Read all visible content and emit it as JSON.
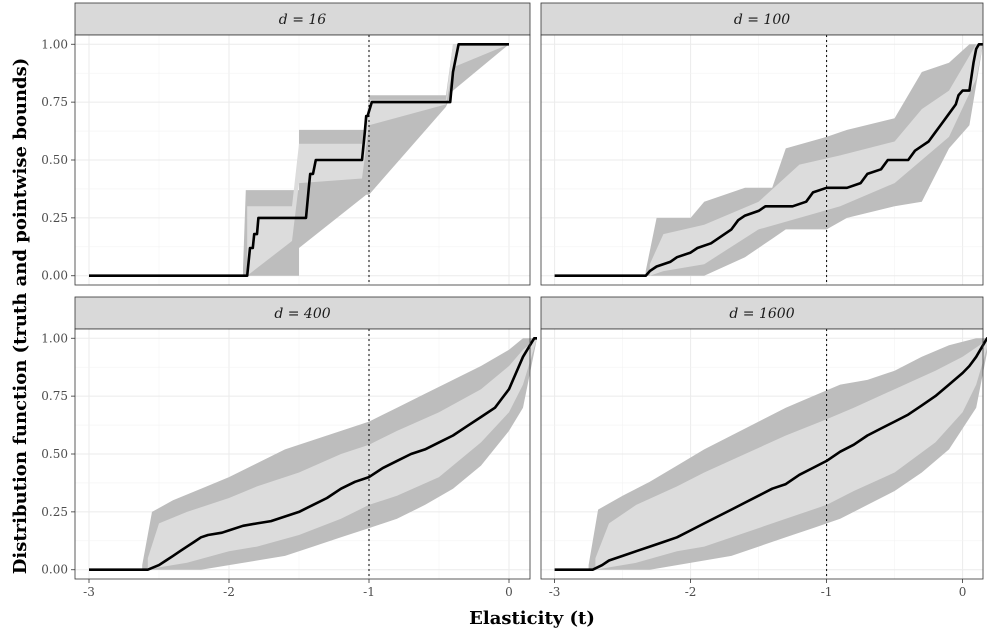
{
  "chart_data": {
    "type": "area",
    "xlabel": "Elasticity (t)",
    "ylabel": "Distribution function (truth and pointwise bounds)",
    "xlim": [
      -3.1,
      0.15
    ],
    "ylim": [
      -0.04,
      1.04
    ],
    "x_ticks": [
      -3,
      -2,
      -1,
      0
    ],
    "x_tick_labels": [
      "-3",
      "-2",
      "-1",
      "0"
    ],
    "y_ticks": [
      0,
      0.25,
      0.5,
      0.75,
      1
    ],
    "y_tick_labels": [
      "0.00",
      "0.25",
      "0.50",
      "0.75",
      "1.00"
    ],
    "reference_line_x": -1,
    "grid": true,
    "colors": {
      "truth": "#000000",
      "outer_band": "#bdbdbd",
      "inner_band": "#dcdcdc",
      "strip_bg": "#d9d9d9",
      "grid": "#ebebeb"
    },
    "panels": [
      {
        "label": "d = 16",
        "truth": [
          [
            -3,
            0
          ],
          [
            -1.87,
            0
          ],
          [
            -1.85,
            0.12
          ],
          [
            -1.83,
            0.12
          ],
          [
            -1.82,
            0.18
          ],
          [
            -1.8,
            0.18
          ],
          [
            -1.79,
            0.25
          ],
          [
            -1.45,
            0.25
          ],
          [
            -1.43,
            0.38
          ],
          [
            -1.42,
            0.44
          ],
          [
            -1.4,
            0.44
          ],
          [
            -1.38,
            0.5
          ],
          [
            -1.05,
            0.5
          ],
          [
            -1.03,
            0.62
          ],
          [
            -1.02,
            0.69
          ],
          [
            -1.01,
            0.69
          ],
          [
            -0.98,
            0.75
          ],
          [
            -0.42,
            0.75
          ],
          [
            -0.4,
            0.88
          ],
          [
            -0.38,
            0.94
          ],
          [
            -0.36,
            1
          ],
          [
            0,
            1
          ]
        ],
        "outer": [
          [
            -1.9,
            0,
            0.03
          ],
          [
            -1.88,
            0,
            0.37
          ],
          [
            -1.5,
            0,
            0.37
          ],
          [
            -1.5,
            0.12,
            0.63
          ],
          [
            -1.02,
            0.35,
            0.63
          ],
          [
            -1.0,
            0.35,
            0.78
          ],
          [
            -0.45,
            0.73,
            0.78
          ],
          [
            -0.4,
            0.8,
            1
          ],
          [
            0,
            1,
            1
          ]
        ],
        "inner": [
          [
            -1.87,
            0,
            0.3
          ],
          [
            -1.55,
            0.15,
            0.3
          ],
          [
            -1.5,
            0.4,
            0.57
          ],
          [
            -1.05,
            0.42,
            0.57
          ],
          [
            -1.0,
            0.65,
            0.76
          ],
          [
            -0.45,
            0.74,
            0.76
          ],
          [
            -0.4,
            0.9,
            1
          ],
          [
            0,
            1,
            1
          ]
        ]
      },
      {
        "label": "d = 100",
        "truth": [
          [
            -3,
            0
          ],
          [
            -2.33,
            0
          ],
          [
            -2.3,
            0.02
          ],
          [
            -2.25,
            0.04
          ],
          [
            -2.15,
            0.06
          ],
          [
            -2.1,
            0.08
          ],
          [
            -2.0,
            0.1
          ],
          [
            -1.95,
            0.12
          ],
          [
            -1.85,
            0.14
          ],
          [
            -1.75,
            0.18
          ],
          [
            -1.7,
            0.2
          ],
          [
            -1.65,
            0.24
          ],
          [
            -1.6,
            0.26
          ],
          [
            -1.5,
            0.28
          ],
          [
            -1.45,
            0.3
          ],
          [
            -1.25,
            0.3
          ],
          [
            -1.15,
            0.32
          ],
          [
            -1.1,
            0.36
          ],
          [
            -1.0,
            0.38
          ],
          [
            -0.85,
            0.38
          ],
          [
            -0.75,
            0.4
          ],
          [
            -0.7,
            0.44
          ],
          [
            -0.6,
            0.46
          ],
          [
            -0.55,
            0.5
          ],
          [
            -0.4,
            0.5
          ],
          [
            -0.35,
            0.54
          ],
          [
            -0.3,
            0.56
          ],
          [
            -0.25,
            0.58
          ],
          [
            -0.2,
            0.62
          ],
          [
            -0.15,
            0.66
          ],
          [
            -0.1,
            0.7
          ],
          [
            -0.05,
            0.74
          ],
          [
            -0.03,
            0.78
          ],
          [
            0.0,
            0.8
          ],
          [
            0.05,
            0.8
          ],
          [
            0.08,
            0.92
          ],
          [
            0.1,
            0.98
          ],
          [
            0.12,
            1
          ],
          [
            0.15,
            1
          ]
        ],
        "outer": [
          [
            -2.33,
            0,
            0.02
          ],
          [
            -2.25,
            0,
            0.25
          ],
          [
            -2.0,
            0,
            0.25
          ],
          [
            -1.9,
            0.0,
            0.32
          ],
          [
            -1.6,
            0.08,
            0.38
          ],
          [
            -1.4,
            0.16,
            0.38
          ],
          [
            -1.3,
            0.2,
            0.55
          ],
          [
            -1.0,
            0.2,
            0.6
          ],
          [
            -0.85,
            0.25,
            0.63
          ],
          [
            -0.5,
            0.3,
            0.68
          ],
          [
            -0.3,
            0.32,
            0.88
          ],
          [
            -0.1,
            0.55,
            0.92
          ],
          [
            0.05,
            0.65,
            1
          ],
          [
            0.15,
            1,
            1
          ]
        ],
        "inner": [
          [
            -2.3,
            0,
            0.05
          ],
          [
            -2.2,
            0.02,
            0.18
          ],
          [
            -1.9,
            0.05,
            0.22
          ],
          [
            -1.5,
            0.2,
            0.32
          ],
          [
            -1.2,
            0.25,
            0.48
          ],
          [
            -0.9,
            0.3,
            0.52
          ],
          [
            -0.5,
            0.4,
            0.58
          ],
          [
            -0.3,
            0.5,
            0.72
          ],
          [
            -0.1,
            0.6,
            0.8
          ],
          [
            0.1,
            0.85,
            1
          ],
          [
            0.15,
            1,
            1
          ]
        ]
      },
      {
        "label": "d = 400",
        "truth": [
          [
            -3,
            0
          ],
          [
            -2.58,
            0
          ],
          [
            -2.5,
            0.02
          ],
          [
            -2.45,
            0.04
          ],
          [
            -2.4,
            0.06
          ],
          [
            -2.35,
            0.08
          ],
          [
            -2.3,
            0.1
          ],
          [
            -2.25,
            0.12
          ],
          [
            -2.2,
            0.14
          ],
          [
            -2.15,
            0.15
          ],
          [
            -2.05,
            0.16
          ],
          [
            -2.0,
            0.17
          ],
          [
            -1.9,
            0.19
          ],
          [
            -1.8,
            0.2
          ],
          [
            -1.7,
            0.21
          ],
          [
            -1.6,
            0.23
          ],
          [
            -1.5,
            0.25
          ],
          [
            -1.4,
            0.28
          ],
          [
            -1.3,
            0.31
          ],
          [
            -1.2,
            0.35
          ],
          [
            -1.1,
            0.38
          ],
          [
            -1.0,
            0.4
          ],
          [
            -0.9,
            0.44
          ],
          [
            -0.8,
            0.47
          ],
          [
            -0.7,
            0.5
          ],
          [
            -0.6,
            0.52
          ],
          [
            -0.5,
            0.55
          ],
          [
            -0.4,
            0.58
          ],
          [
            -0.3,
            0.62
          ],
          [
            -0.2,
            0.66
          ],
          [
            -0.1,
            0.7
          ],
          [
            -0.05,
            0.74
          ],
          [
            0.0,
            0.78
          ],
          [
            0.05,
            0.85
          ],
          [
            0.1,
            0.92
          ],
          [
            0.15,
            0.97
          ],
          [
            0.18,
            1
          ],
          [
            0.2,
            1
          ]
        ],
        "outer": [
          [
            -2.62,
            0,
            0.02
          ],
          [
            -2.55,
            0,
            0.25
          ],
          [
            -2.4,
            0,
            0.3
          ],
          [
            -2.2,
            0,
            0.35
          ],
          [
            -2.0,
            0.02,
            0.4
          ],
          [
            -1.8,
            0.04,
            0.46
          ],
          [
            -1.6,
            0.06,
            0.52
          ],
          [
            -1.4,
            0.1,
            0.56
          ],
          [
            -1.2,
            0.14,
            0.6
          ],
          [
            -1.0,
            0.18,
            0.64
          ],
          [
            -0.8,
            0.22,
            0.7
          ],
          [
            -0.6,
            0.28,
            0.76
          ],
          [
            -0.4,
            0.35,
            0.82
          ],
          [
            -0.2,
            0.45,
            0.88
          ],
          [
            0.0,
            0.6,
            0.95
          ],
          [
            0.1,
            0.7,
            1
          ],
          [
            0.2,
            1,
            1
          ]
        ],
        "inner": [
          [
            -2.58,
            0,
            0.05
          ],
          [
            -2.5,
            0.01,
            0.2
          ],
          [
            -2.3,
            0.03,
            0.25
          ],
          [
            -2.0,
            0.08,
            0.31
          ],
          [
            -1.8,
            0.1,
            0.36
          ],
          [
            -1.5,
            0.15,
            0.42
          ],
          [
            -1.2,
            0.22,
            0.5
          ],
          [
            -1.0,
            0.28,
            0.54
          ],
          [
            -0.8,
            0.32,
            0.6
          ],
          [
            -0.5,
            0.4,
            0.68
          ],
          [
            -0.2,
            0.55,
            0.78
          ],
          [
            0.0,
            0.68,
            0.88
          ],
          [
            0.1,
            0.8,
            0.95
          ],
          [
            0.2,
            1,
            1
          ]
        ]
      },
      {
        "label": "d = 1600",
        "truth": [
          [
            -3,
            0
          ],
          [
            -2.72,
            0
          ],
          [
            -2.65,
            0.02
          ],
          [
            -2.6,
            0.04
          ],
          [
            -2.5,
            0.06
          ],
          [
            -2.4,
            0.08
          ],
          [
            -2.3,
            0.1
          ],
          [
            -2.2,
            0.12
          ],
          [
            -2.1,
            0.14
          ],
          [
            -2.0,
            0.17
          ],
          [
            -1.9,
            0.2
          ],
          [
            -1.8,
            0.23
          ],
          [
            -1.7,
            0.26
          ],
          [
            -1.6,
            0.29
          ],
          [
            -1.5,
            0.32
          ],
          [
            -1.4,
            0.35
          ],
          [
            -1.3,
            0.37
          ],
          [
            -1.2,
            0.41
          ],
          [
            -1.1,
            0.44
          ],
          [
            -1.0,
            0.47
          ],
          [
            -0.9,
            0.51
          ],
          [
            -0.8,
            0.54
          ],
          [
            -0.7,
            0.58
          ],
          [
            -0.6,
            0.61
          ],
          [
            -0.5,
            0.64
          ],
          [
            -0.4,
            0.67
          ],
          [
            -0.3,
            0.71
          ],
          [
            -0.2,
            0.75
          ],
          [
            -0.1,
            0.8
          ],
          [
            0.0,
            0.85
          ],
          [
            0.05,
            0.88
          ],
          [
            0.1,
            0.92
          ],
          [
            0.15,
            0.97
          ],
          [
            0.18,
            1
          ],
          [
            0.2,
            1
          ]
        ],
        "outer": [
          [
            -2.75,
            0,
            0.02
          ],
          [
            -2.68,
            0,
            0.26
          ],
          [
            -2.5,
            0,
            0.32
          ],
          [
            -2.3,
            0,
            0.38
          ],
          [
            -2.1,
            0.02,
            0.45
          ],
          [
            -1.9,
            0.04,
            0.52
          ],
          [
            -1.7,
            0.06,
            0.58
          ],
          [
            -1.5,
            0.1,
            0.64
          ],
          [
            -1.3,
            0.14,
            0.7
          ],
          [
            -1.1,
            0.18,
            0.75
          ],
          [
            -0.9,
            0.22,
            0.8
          ],
          [
            -0.7,
            0.28,
            0.82
          ],
          [
            -0.5,
            0.34,
            0.86
          ],
          [
            -0.3,
            0.42,
            0.92
          ],
          [
            -0.1,
            0.52,
            0.97
          ],
          [
            0.1,
            0.7,
            1
          ],
          [
            0.2,
            1,
            1
          ]
        ],
        "inner": [
          [
            -2.7,
            0,
            0.05
          ],
          [
            -2.6,
            0.01,
            0.2
          ],
          [
            -2.4,
            0.03,
            0.28
          ],
          [
            -2.1,
            0.08,
            0.36
          ],
          [
            -1.9,
            0.1,
            0.42
          ],
          [
            -1.6,
            0.16,
            0.5
          ],
          [
            -1.3,
            0.22,
            0.58
          ],
          [
            -1.0,
            0.28,
            0.65
          ],
          [
            -0.8,
            0.34,
            0.7
          ],
          [
            -0.5,
            0.42,
            0.78
          ],
          [
            -0.2,
            0.55,
            0.86
          ],
          [
            0.0,
            0.68,
            0.92
          ],
          [
            0.1,
            0.8,
            0.96
          ],
          [
            0.2,
            1,
            1
          ]
        ]
      }
    ]
  }
}
